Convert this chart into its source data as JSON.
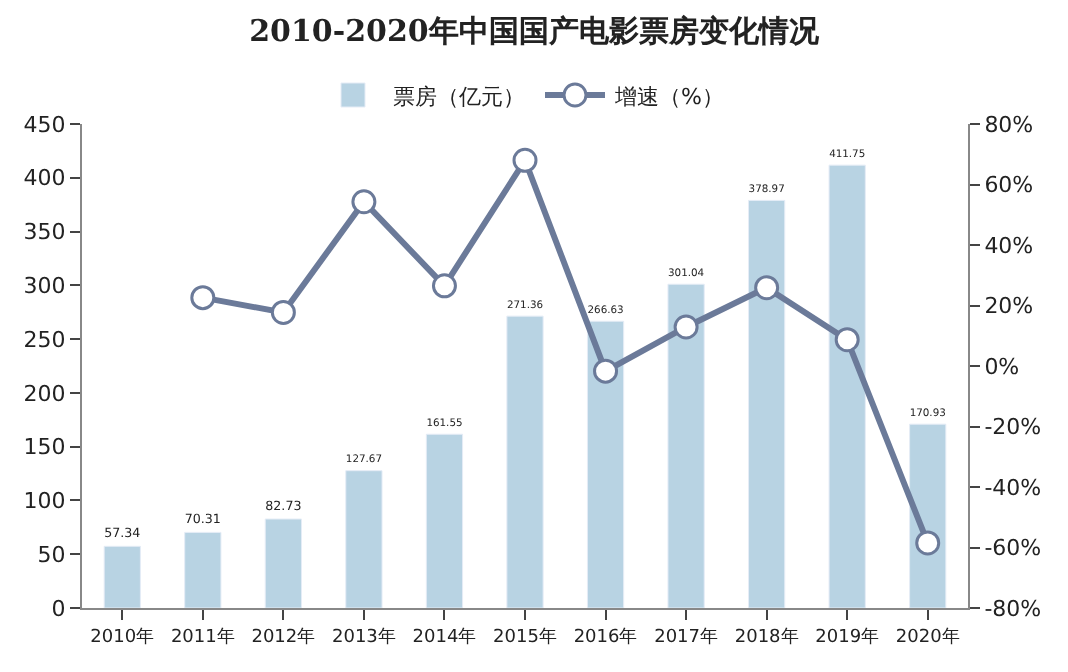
{
  "chart_data": {
    "type": "bar",
    "title": "2010-2020年中国国产电影票房变化情况",
    "categories": [
      "2010年",
      "2011年",
      "2012年",
      "2013年",
      "2014年",
      "2015年",
      "2016年",
      "2017年",
      "2018年",
      "2019年",
      "2020年"
    ],
    "series": [
      {
        "name": "票房（亿元）",
        "color": "#b8d3e3",
        "values": [
          57.34,
          70.31,
          82.73,
          127.67,
          161.55,
          271.36,
          266.63,
          301.04,
          378.97,
          411.75,
          170.93
        ],
        "value_labels": [
          "57.34",
          "70.31",
          "82.73",
          "127.67",
          "161.55",
          "271.36",
          "266.63",
          "301.04",
          "378.97",
          "411.75",
          "170.93"
        ]
      },
      {
        "name": "增速（%）",
        "type": "line",
        "axis": "y2",
        "color": "#6b7a99",
        "marker": "circle",
        "values": [
          null,
          22.6,
          17.7,
          54.3,
          26.5,
          68.0,
          -1.7,
          12.9,
          25.9,
          8.7,
          -58.5
        ]
      }
    ],
    "ylim": [
      0,
      450
    ],
    "yticks": [
      0,
      50,
      100,
      150,
      200,
      250,
      300,
      350,
      400,
      450
    ],
    "y2lim": [
      -80,
      80
    ],
    "y2ticks": [
      {
        "value": -80,
        "label": "-80%"
      },
      {
        "value": -60,
        "label": "-60%"
      },
      {
        "value": -40,
        "label": "-40%"
      },
      {
        "value": -20,
        "label": "-20%"
      },
      {
        "value": 0,
        "label": "0%"
      },
      {
        "value": 20,
        "label": "20%"
      },
      {
        "value": 40,
        "label": "40%"
      },
      {
        "value": 60,
        "label": "60%"
      },
      {
        "value": 80,
        "label": "80%"
      }
    ],
    "legend": "top"
  }
}
